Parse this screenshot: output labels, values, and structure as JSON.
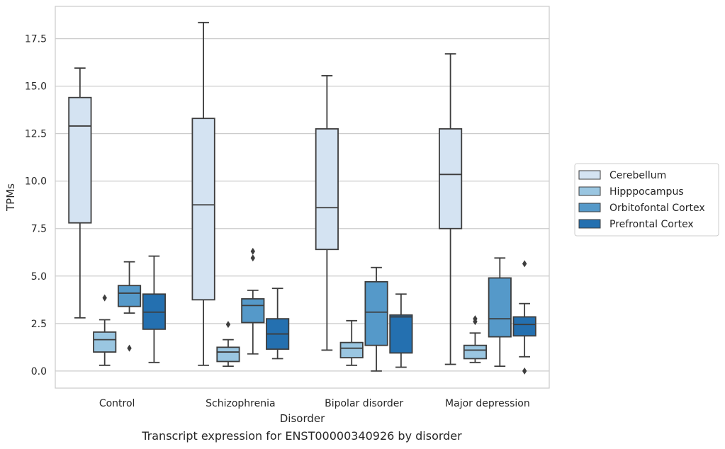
{
  "caption": "Transcript expression for ENST00000340926 by disorder",
  "chart_data": {
    "type": "box",
    "xlabel": "Disorder",
    "ylabel": "TPMs",
    "ylim": [
      -0.9,
      19.2
    ],
    "yticks": [
      0.0,
      2.5,
      5.0,
      7.5,
      10.0,
      12.5,
      15.0,
      17.5
    ],
    "ytick_labels": [
      "0.0",
      "2.5",
      "5.0",
      "7.5",
      "10.0",
      "12.5",
      "15.0",
      "17.5"
    ],
    "categories": [
      "Control",
      "Schizophrenia",
      "Bipolar disorder",
      "Major depression"
    ],
    "grid": "horizontal",
    "legend_position": "right",
    "series": [
      {
        "name": "Cerebellum",
        "color": "#d4e3f2",
        "boxes": [
          {
            "whislo": 2.8,
            "q1": 7.8,
            "med": 12.9,
            "q3": 14.4,
            "whishi": 15.95,
            "fliers": []
          },
          {
            "whislo": 0.3,
            "q1": 3.75,
            "med": 8.75,
            "q3": 13.3,
            "whishi": 18.35,
            "fliers": []
          },
          {
            "whislo": 1.1,
            "q1": 6.4,
            "med": 8.6,
            "q3": 12.75,
            "whishi": 15.55,
            "fliers": []
          },
          {
            "whislo": 0.35,
            "q1": 7.5,
            "med": 10.35,
            "q3": 12.75,
            "whishi": 16.7,
            "fliers": []
          }
        ]
      },
      {
        "name": "Hipppocampus",
        "color": "#9ac6e1",
        "boxes": [
          {
            "whislo": 0.3,
            "q1": 1.0,
            "med": 1.65,
            "q3": 2.05,
            "whishi": 2.7,
            "fliers": [
              3.85
            ]
          },
          {
            "whislo": 0.25,
            "q1": 0.5,
            "med": 1.0,
            "q3": 1.25,
            "whishi": 1.65,
            "fliers": [
              2.45
            ]
          },
          {
            "whislo": 0.3,
            "q1": 0.7,
            "med": 1.2,
            "q3": 1.5,
            "whishi": 2.65,
            "fliers": []
          },
          {
            "whislo": 0.45,
            "q1": 0.65,
            "med": 1.1,
            "q3": 1.35,
            "whishi": 2.0,
            "fliers": [
              2.6,
              2.75
            ]
          }
        ]
      },
      {
        "name": "Orbitofontal Cortex",
        "color": "#5599c9",
        "boxes": [
          {
            "whislo": 3.05,
            "q1": 3.4,
            "med": 4.1,
            "q3": 4.5,
            "whishi": 5.75,
            "fliers": [
              1.2
            ]
          },
          {
            "whislo": 0.9,
            "q1": 2.55,
            "med": 3.45,
            "q3": 3.8,
            "whishi": 4.25,
            "fliers": [
              5.95,
              6.3
            ]
          },
          {
            "whislo": 0.0,
            "q1": 1.35,
            "med": 3.1,
            "q3": 4.7,
            "whishi": 5.45,
            "fliers": []
          },
          {
            "whislo": 0.25,
            "q1": 1.8,
            "med": 2.75,
            "q3": 4.9,
            "whishi": 5.95,
            "fliers": []
          }
        ]
      },
      {
        "name": "Prefrontal Cortex",
        "color": "#2470b0",
        "boxes": [
          {
            "whislo": 0.45,
            "q1": 2.2,
            "med": 3.1,
            "q3": 4.05,
            "whishi": 6.05,
            "fliers": []
          },
          {
            "whislo": 0.65,
            "q1": 1.15,
            "med": 1.95,
            "q3": 2.75,
            "whishi": 4.35,
            "fliers": []
          },
          {
            "whislo": 0.2,
            "q1": 0.95,
            "med": 2.85,
            "q3": 2.95,
            "whishi": 4.05,
            "fliers": []
          },
          {
            "whislo": 0.75,
            "q1": 1.85,
            "med": 2.45,
            "q3": 2.85,
            "whishi": 3.55,
            "fliers": [
              0.0,
              5.65
            ]
          }
        ]
      }
    ]
  }
}
